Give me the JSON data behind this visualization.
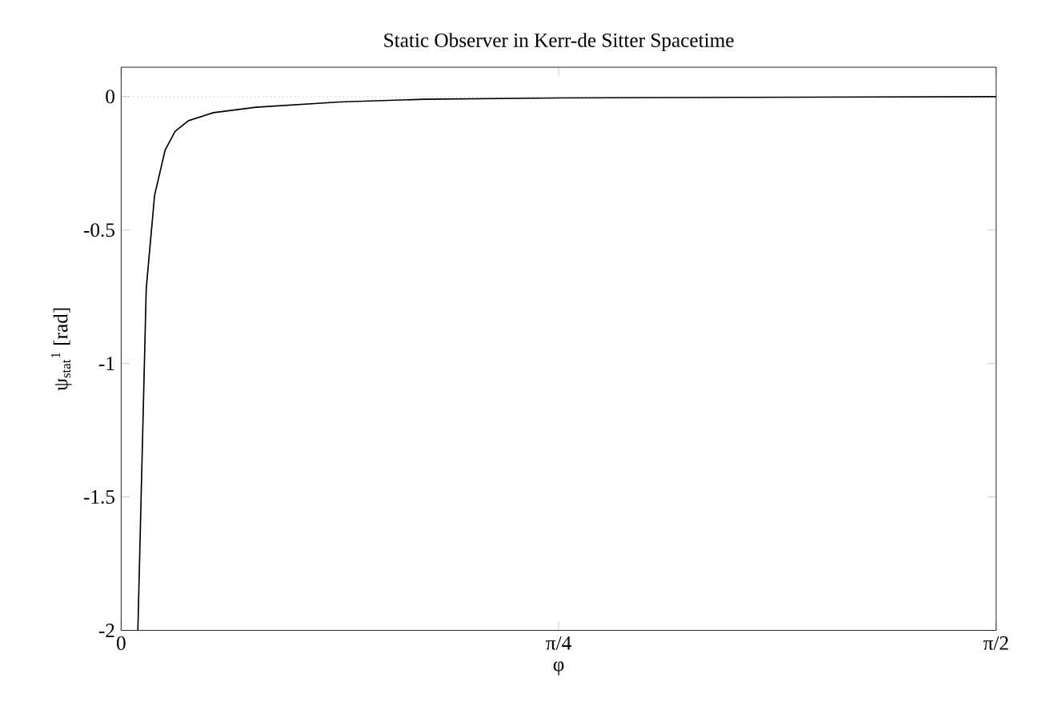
{
  "chart_data": {
    "type": "line",
    "title": "Static Observer in Kerr-de Sitter Spacetime",
    "xlabel": "φ",
    "ylabel": "ψ$_{stat}$$^{1}$ [rad]",
    "series": [
      {
        "color": "#000000",
        "x": [
          0.03,
          0.045,
          0.06,
          0.079,
          0.097,
          0.121,
          0.166,
          0.242,
          0.393,
          0.544,
          0.785,
          1.5708
        ],
        "values": [
          -2,
          -0.72,
          -0.37,
          -0.2,
          -0.13,
          -0.09,
          -0.06,
          -0.04,
          -0.02,
          -0.01,
          -0.005,
          0
        ]
      }
    ],
    "xlim": [
      0,
      1.5708
    ],
    "ylim": [
      -2,
      0.11
    ],
    "xticks": [
      0,
      {
        "value": 0.7854,
        "label": "π/4"
      },
      {
        "value": 1.5708,
        "label": "π/2"
      }
    ],
    "yticks": [
      -2,
      -1.5,
      -1,
      -0.5,
      0
    ],
    "ref_lines": [
      {
        "axis": "y",
        "value": 0,
        "color": "#808080",
        "line_style": "dotted"
      }
    ],
    "grid": false,
    "marker": "none",
    "line_style": "solid"
  }
}
